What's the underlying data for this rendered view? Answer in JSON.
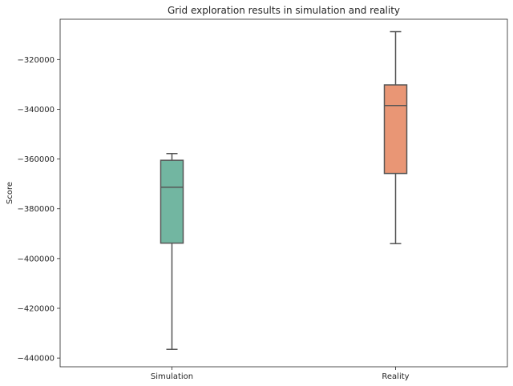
{
  "chart_data": {
    "type": "box",
    "title": "Grid exploration results in simulation and reality",
    "xlabel": "",
    "ylabel": "Score",
    "ylim": [
      -443500,
      -303800
    ],
    "yticks": [
      -440000,
      -420000,
      -400000,
      -380000,
      -360000,
      -340000,
      -320000
    ],
    "ytick_labels": [
      "−440000",
      "−420000",
      "−400000",
      "−380000",
      "−360000",
      "−340000",
      "−320000"
    ],
    "grid": false,
    "categories": [
      "Simulation",
      "Reality"
    ],
    "boxes": [
      {
        "category": "Simulation",
        "whisker_low": -436500,
        "q1": -393800,
        "median": -371300,
        "q3": -360500,
        "whisker_high": -357800,
        "color": "#72b6a1"
      },
      {
        "category": "Reality",
        "whisker_low": -394000,
        "q1": -365800,
        "median": -338500,
        "q3": -330200,
        "whisker_high": -308800,
        "color": "#e99675"
      }
    ],
    "line_color": "#555555"
  }
}
